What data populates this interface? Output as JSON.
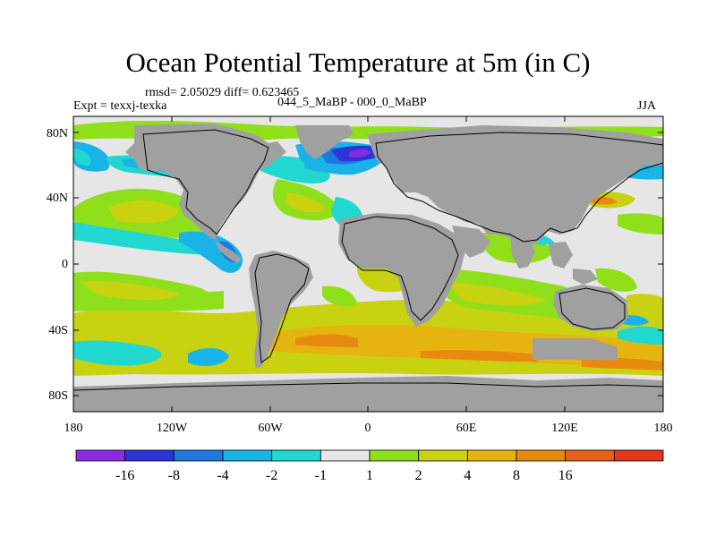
{
  "title": "Ocean Potential Temperature at 5m (in C)",
  "stats": "rmsd= 2.05029 diff= 0.623465",
  "experiment": "Expt = texxj-texka",
  "comparison": "044_5_MaBP - 000_0_MaBP",
  "season": "JJA",
  "axes": {
    "lat_labels": [
      "80N",
      "40N",
      "0",
      "40S",
      "80S"
    ],
    "lon_labels": [
      "180",
      "120W",
      "60W",
      "0",
      "60E",
      "120E",
      "180"
    ]
  },
  "colorbar": {
    "colors": [
      "#8a2be2",
      "#2b35d8",
      "#1e78e0",
      "#1ab3e8",
      "#20d8d0",
      "#e6e6e6",
      "#8fe01a",
      "#c9d210",
      "#e6b40e",
      "#e88a10",
      "#e8601a",
      "#e3361a"
    ],
    "labels": [
      "-16",
      "-8",
      "-4",
      "-2",
      "-1",
      "1",
      "2",
      "4",
      "8",
      "16"
    ]
  },
  "colors": {
    "land": "#a0a0a0",
    "neutral": "#e6e6e6"
  }
}
